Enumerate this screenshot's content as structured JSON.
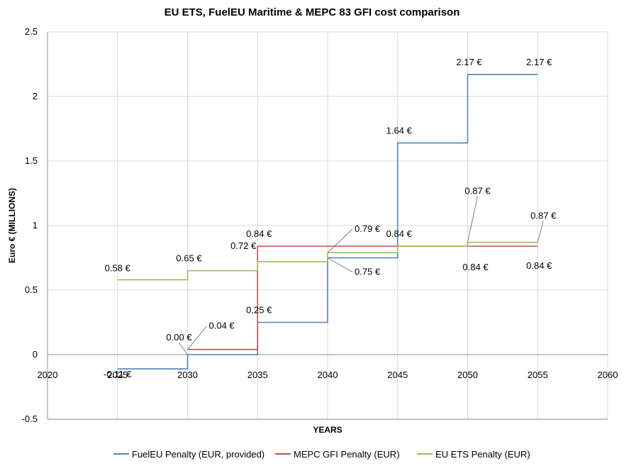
{
  "chart_data": {
    "type": "line",
    "step": true,
    "title": "EU ETS, FuelEU Maritime & MEPC 83 GFI cost comparison",
    "xlabel": "YEARS",
    "ylabel": "Euro € (MILLIONS)",
    "xlim": [
      2020,
      2060
    ],
    "ylim": [
      -0.5,
      2.5
    ],
    "xticks": [
      2020,
      2025,
      2030,
      2035,
      2040,
      2045,
      2050,
      2055,
      2060
    ],
    "yticks": [
      -0.5,
      0,
      0.5,
      1,
      1.5,
      2,
      2.5
    ],
    "grid": true,
    "legend_position": "bottom",
    "series": [
      {
        "name": "FuelEU Penalty (EUR, provided)",
        "color": "#4f81bd",
        "x": [
          2025,
          2030,
          2035,
          2040,
          2045,
          2050,
          2055
        ],
        "y": [
          -0.11,
          0.0,
          0.25,
          0.75,
          1.64,
          2.17,
          2.17
        ]
      },
      {
        "name": "MEPC GFI Penalty (EUR)",
        "color": "#c0504d",
        "x": [
          2030,
          2035,
          2040,
          2045,
          2050,
          2055
        ],
        "y": [
          0.04,
          0.84,
          0.84,
          0.84,
          0.84,
          0.84
        ]
      },
      {
        "name": "EU ETS Penalty (EUR)",
        "color": "#9bbb59",
        "x": [
          2025,
          2030,
          2035,
          2040,
          2045,
          2050,
          2055
        ],
        "y": [
          0.58,
          0.65,
          0.72,
          0.79,
          0.84,
          0.87,
          0.87
        ]
      }
    ],
    "data_labels": [
      {
        "text": "-0.11 €",
        "x": 2025,
        "y": -0.11,
        "series": 0
      },
      {
        "text": "0.00 €",
        "x": 2030,
        "y": 0.0,
        "series": 0
      },
      {
        "text": "0.25 €",
        "x": 2035,
        "y": 0.25,
        "series": 0
      },
      {
        "text": "0.75 €",
        "x": 2040,
        "y": 0.75,
        "series": 0
      },
      {
        "text": "1.64 €",
        "x": 2045,
        "y": 1.64,
        "series": 0
      },
      {
        "text": "2.17 €",
        "x": 2050,
        "y": 2.17,
        "series": 0
      },
      {
        "text": "2.17 €",
        "x": 2055,
        "y": 2.17,
        "series": 0
      },
      {
        "text": "0.04 €",
        "x": 2030,
        "y": 0.04,
        "series": 1
      },
      {
        "text": "0.84 €",
        "x": 2035,
        "y": 0.84,
        "series": 1
      },
      {
        "text": "0.84 €",
        "x": 2045,
        "y": 0.84,
        "series": 1
      },
      {
        "text": "0.84 €",
        "x": 2050,
        "y": 0.84,
        "series": 1
      },
      {
        "text": "0.84 €",
        "x": 2055,
        "y": 0.84,
        "series": 1
      },
      {
        "text": "0.58 €",
        "x": 2025,
        "y": 0.58,
        "series": 2
      },
      {
        "text": "0.65 €",
        "x": 2030,
        "y": 0.65,
        "series": 2
      },
      {
        "text": "0.72 €",
        "x": 2035,
        "y": 0.72,
        "series": 2
      },
      {
        "text": "0.79 €",
        "x": 2040,
        "y": 0.79,
        "series": 2
      },
      {
        "text": "0.87 €",
        "x": 2050,
        "y": 0.87,
        "series": 2
      },
      {
        "text": "0.87 €",
        "x": 2055,
        "y": 0.87,
        "series": 2
      }
    ]
  }
}
